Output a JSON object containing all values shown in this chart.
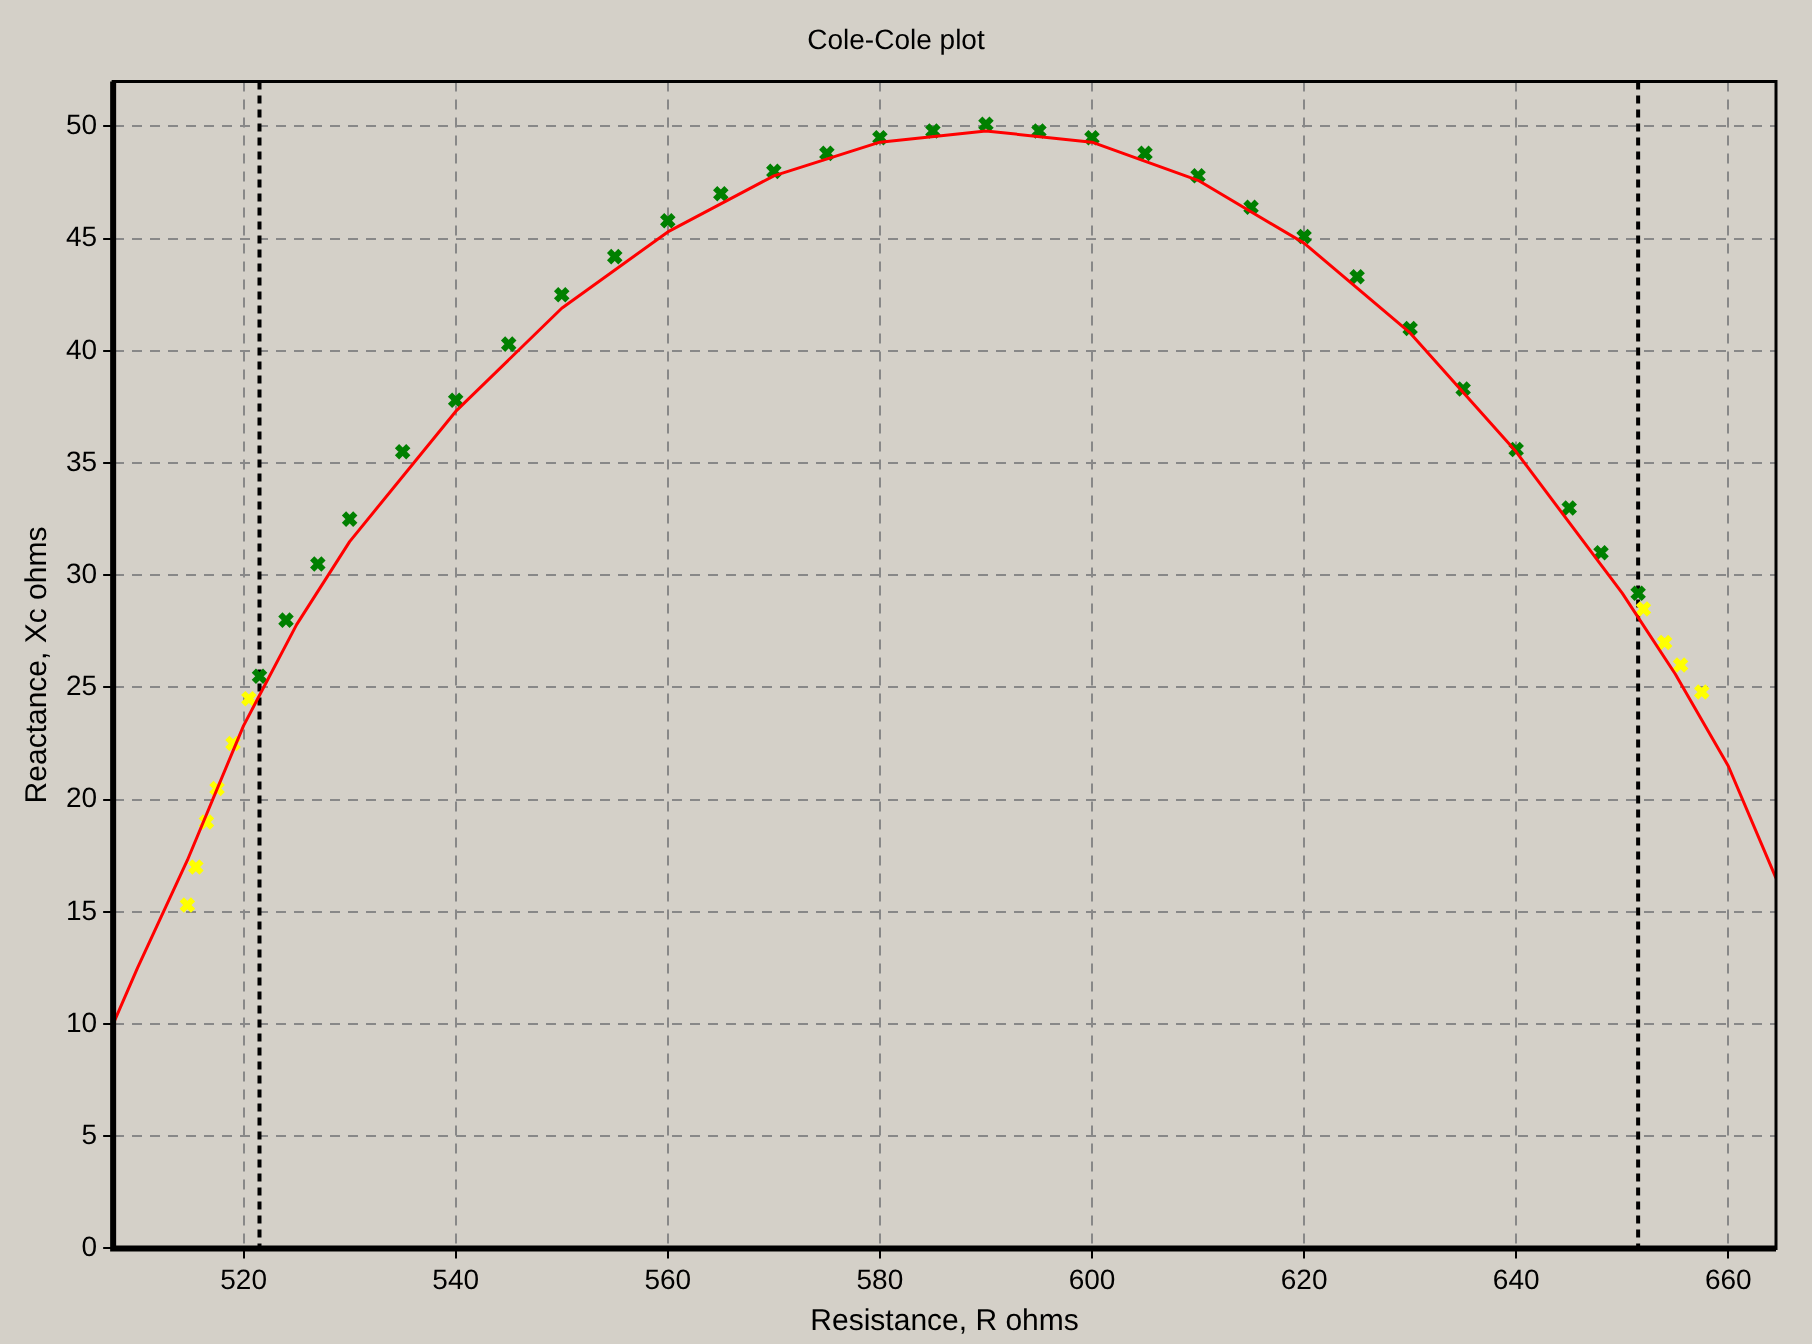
{
  "chart_data": {
    "type": "scatter",
    "title": "Cole-Cole plot",
    "xlabel": "Resistance, R ohms",
    "ylabel": "Reactance, Xc ohms",
    "xlim": [
      507.7,
      664.5
    ],
    "xticks": [
      520,
      540,
      560,
      580,
      600,
      620,
      640,
      660
    ],
    "ylim": [
      0,
      52
    ],
    "yticks": [
      0,
      5,
      10,
      15,
      20,
      25,
      30,
      35,
      40,
      45,
      50
    ],
    "grid": true,
    "legend": false,
    "marker": "cross",
    "ref_lines": [
      {
        "axis": "x",
        "value": 521.5,
        "color": "#000000",
        "line_style": "dashed"
      },
      {
        "axis": "x",
        "value": 651.5,
        "color": "#000000",
        "line_style": "dashed"
      }
    ],
    "series": [
      {
        "color": "#008000",
        "x": [
          521.5,
          524,
          527,
          530,
          535,
          540,
          545,
          550,
          555,
          560,
          565,
          570,
          575,
          580,
          585,
          590,
          595,
          600,
          605,
          610,
          615,
          620,
          625,
          630,
          635,
          640,
          645,
          648,
          651.5
        ],
        "values": [
          25.5,
          28,
          30.5,
          32.5,
          35.5,
          37.8,
          40.3,
          42.5,
          44.2,
          45.8,
          47,
          48,
          48.8,
          49.5,
          49.8,
          50.1,
          49.8,
          49.5,
          48.8,
          47.8,
          46.4,
          45.1,
          43.3,
          41,
          38.3,
          35.6,
          33,
          31,
          29.2
        ]
      },
      {
        "type": "scatter",
        "color": "#ffff00",
        "x": [
          514.7,
          515.5,
          516.5,
          517.5,
          519,
          520.5
        ],
        "values": [
          15.3,
          17,
          19,
          20.5,
          22.5,
          24.5
        ]
      },
      {
        "type": "scatter",
        "color": "#ffff00",
        "x": [
          652,
          654,
          655.5,
          657.5
        ],
        "values": [
          28.5,
          27,
          26,
          24.8
        ]
      },
      {
        "type": "line",
        "color": "#ff0000",
        "marker": "none",
        "x": [
          507.7,
          510,
          514.7,
          520,
          525,
          530,
          540,
          550,
          560,
          570,
          580,
          590,
          600,
          610,
          620,
          630,
          640,
          650,
          655,
          660,
          664.5
        ],
        "values": [
          10,
          12.5,
          17.3,
          23.3,
          27.8,
          31.5,
          37.3,
          41.9,
          45.3,
          47.8,
          49.3,
          49.8,
          49.3,
          47.6,
          44.8,
          40.8,
          35.5,
          29.2,
          25.6,
          21.5,
          16.5
        ]
      }
    ]
  }
}
